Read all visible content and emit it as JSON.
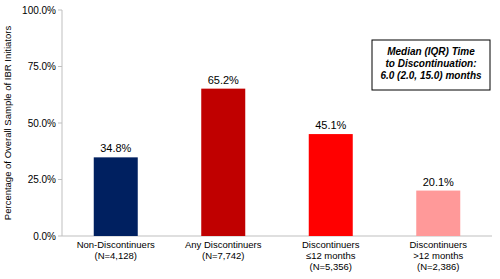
{
  "chart_data": {
    "type": "bar",
    "categories": [
      "Non-Discontinuers\n(N=4,128)",
      "Any Discontinuers\n(N=7,742)",
      "Discontinuers\n≤12 months\n(N=5,356)",
      "Discontinuers\n>12 months\n(N=2,386)"
    ],
    "values": [
      34.8,
      65.2,
      45.1,
      20.1
    ],
    "value_labels": [
      "34.8%",
      "65.2%",
      "45.1%",
      "20.1%"
    ],
    "colors": [
      "#002060",
      "#c00000",
      "#ff0000",
      "#ff9999"
    ],
    "ylabel": "Percentage of Overall Sample of IBR Initiators",
    "ylim": [
      0,
      100
    ],
    "yticks": [
      {
        "value": 0,
        "label": "0.0%"
      },
      {
        "value": 25,
        "label": "25.0%"
      },
      {
        "value": 50,
        "label": "50.0%"
      },
      {
        "value": 75,
        "label": "75.0%"
      },
      {
        "value": 100,
        "label": "100.0%"
      }
    ],
    "annotations": [
      "Median (IQR) Time\nto Discontinuation:\n6.0 (2.0, 15.0) months"
    ],
    "data_labels": true,
    "grid": false
  }
}
